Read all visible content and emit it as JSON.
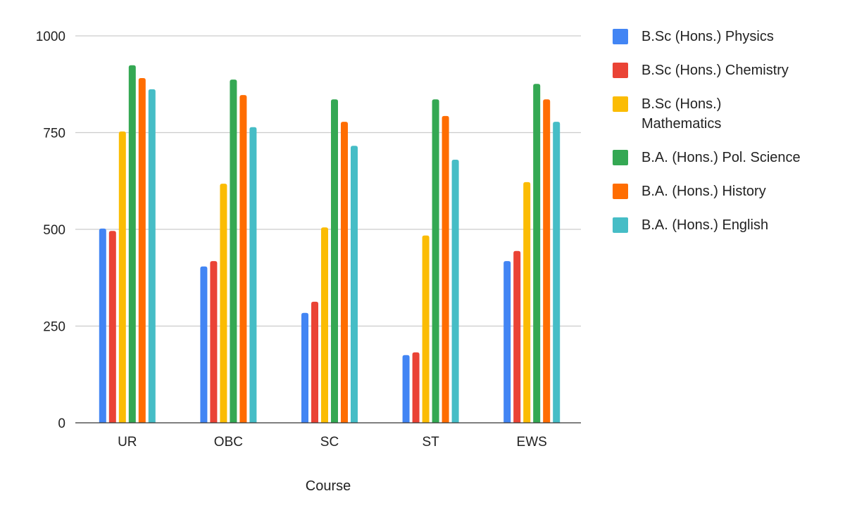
{
  "chart_data": {
    "type": "bar",
    "title": "",
    "xlabel": "Course",
    "ylabel": "",
    "ylim": [
      0,
      1000
    ],
    "yticks": [
      0,
      250,
      500,
      750,
      1000
    ],
    "grid": true,
    "legend_position": "right",
    "categories": [
      "UR",
      "OBC",
      "SC",
      "ST",
      "EWS"
    ],
    "series": [
      {
        "name": "B.Sc (Hons.) Physics",
        "color": "#4285f4",
        "values": [
          502,
          404,
          284,
          175,
          418
        ]
      },
      {
        "name": "B.Sc (Hons.) Chemistry",
        "color": "#ea4335",
        "values": [
          496,
          418,
          313,
          182,
          444
        ]
      },
      {
        "name": "B.Sc (Hons.) Mathematics",
        "color": "#fbbc04",
        "values": [
          753,
          618,
          505,
          484,
          622
        ]
      },
      {
        "name": "B.A. (Hons.) Pol. Science",
        "color": "#34a853",
        "values": [
          924,
          887,
          836,
          836,
          876
        ]
      },
      {
        "name": "B.A. (Hons.) History",
        "color": "#ff6d01",
        "values": [
          891,
          847,
          778,
          793,
          836
        ]
      },
      {
        "name": "B.A. (Hons.) English",
        "color": "#46bdc6",
        "values": [
          862,
          764,
          716,
          680,
          778
        ]
      }
    ]
  }
}
